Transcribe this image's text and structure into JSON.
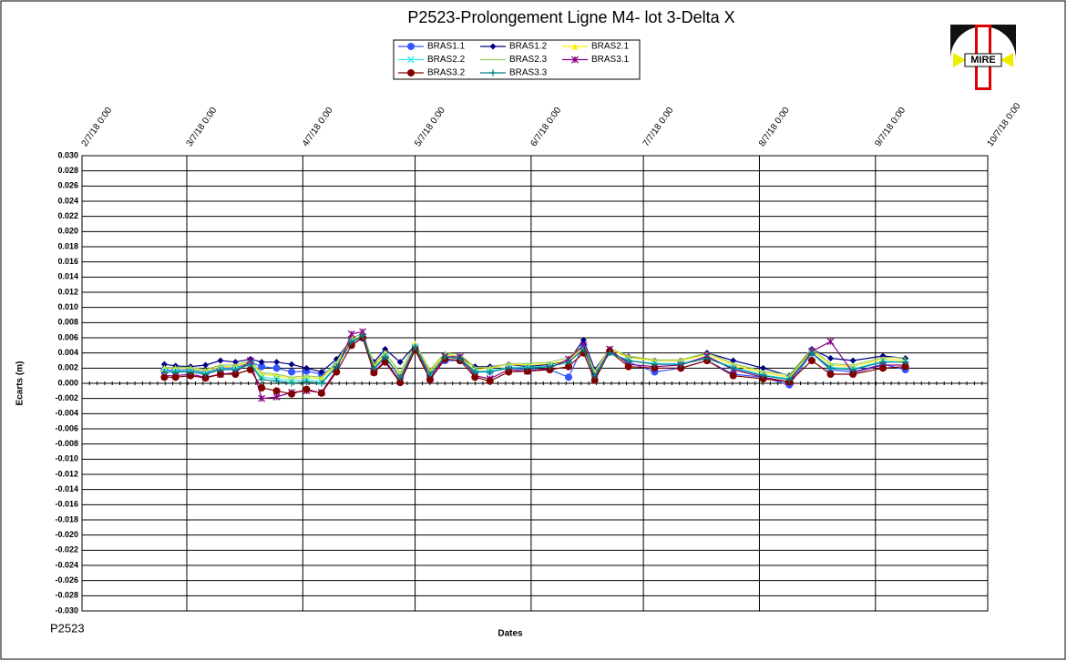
{
  "chart_data": {
    "type": "line",
    "title": "P2523-Prolongement  Ligne  M4- lot 3-Delta X",
    "x_label": "Dates",
    "y_label": "Ecarts (m)",
    "footer": "P2523",
    "logo_text": "MIRE",
    "x": [
      "2018-03-01",
      "2018-03-04",
      "2018-03-08",
      "2018-03-12",
      "2018-03-16",
      "2018-03-20",
      "2018-03-24",
      "2018-03-27",
      "2018-03-31",
      "2018-04-04",
      "2018-04-08",
      "2018-04-12",
      "2018-04-16",
      "2018-04-20",
      "2018-04-23",
      "2018-04-26",
      "2018-04-29",
      "2018-05-03",
      "2018-05-07",
      "2018-05-11",
      "2018-05-15",
      "2018-05-19",
      "2018-05-23",
      "2018-05-27",
      "2018-06-01",
      "2018-06-06",
      "2018-06-12",
      "2018-06-17",
      "2018-06-21",
      "2018-06-24",
      "2018-06-28",
      "2018-07-03",
      "2018-07-10",
      "2018-07-17",
      "2018-07-24",
      "2018-07-31",
      "2018-08-08",
      "2018-08-15",
      "2018-08-21",
      "2018-08-26",
      "2018-09-01",
      "2018-09-09",
      "2018-09-15"
    ],
    "xlim": [
      "2018-02-07",
      "2018-10-07"
    ],
    "xticks": [
      {
        "value": "2018-02-07",
        "label": "2/7/18 0:00"
      },
      {
        "value": "2018-03-07",
        "label": "3/7/18 0:00"
      },
      {
        "value": "2018-04-07",
        "label": "4/7/18 0:00"
      },
      {
        "value": "2018-05-07",
        "label": "5/7/18 0:00"
      },
      {
        "value": "2018-06-07",
        "label": "6/7/18 0:00"
      },
      {
        "value": "2018-07-07",
        "label": "7/7/18 0:00"
      },
      {
        "value": "2018-08-07",
        "label": "8/7/18 0:00"
      },
      {
        "value": "2018-09-07",
        "label": "9/7/18 0:00"
      },
      {
        "value": "2018-10-07",
        "label": "10/7/18 0:00"
      }
    ],
    "ylim": [
      -0.03,
      0.03
    ],
    "yticks": [
      {
        "value": 0.03,
        "label": "0.030"
      },
      {
        "value": 0.028,
        "label": "0.028"
      },
      {
        "value": 0.026,
        "label": "0.026"
      },
      {
        "value": 0.024,
        "label": "0.024"
      },
      {
        "value": 0.022,
        "label": "0.022"
      },
      {
        "value": 0.02,
        "label": "0.020"
      },
      {
        "value": 0.018,
        "label": "0.018"
      },
      {
        "value": 0.016,
        "label": "0.016"
      },
      {
        "value": 0.014,
        "label": "0.014"
      },
      {
        "value": 0.012,
        "label": "0.012"
      },
      {
        "value": 0.01,
        "label": "0.010"
      },
      {
        "value": 0.008,
        "label": "0.008"
      },
      {
        "value": 0.006,
        "label": "0.006"
      },
      {
        "value": 0.004,
        "label": "0.004"
      },
      {
        "value": 0.002,
        "label": "0.002"
      },
      {
        "value": 0,
        "label": "0.000"
      },
      {
        "value": -0.002,
        "label": "-0.002"
      },
      {
        "value": -0.004,
        "label": "-0.004"
      },
      {
        "value": -0.006,
        "label": "-0.006"
      },
      {
        "value": -0.008,
        "label": "-0.008"
      },
      {
        "value": -0.01,
        "label": "-0.010"
      },
      {
        "value": -0.012,
        "label": "-0.012"
      },
      {
        "value": -0.014,
        "label": "-0.014"
      },
      {
        "value": -0.016,
        "label": "-0.016"
      },
      {
        "value": -0.018,
        "label": "-0.018"
      },
      {
        "value": -0.02,
        "label": "-0.020"
      },
      {
        "value": -0.022,
        "label": "-0.022"
      },
      {
        "value": -0.024,
        "label": "-0.024"
      },
      {
        "value": -0.026,
        "label": "-0.026"
      },
      {
        "value": -0.028,
        "label": "-0.028"
      },
      {
        "value": -0.03,
        "label": "-0.030"
      }
    ],
    "grid": true,
    "series": [
      {
        "name": "BRAS1.1",
        "color": "#3355ff",
        "marker": "circle",
        "values": [
          0.0018,
          0.0017,
          0.0018,
          0.0014,
          0.002,
          0.002,
          0.0028,
          0.0022,
          0.002,
          0.0015,
          0.0016,
          0.0012,
          0.0023,
          0.0055,
          0.006,
          0.0018,
          0.0035,
          0.0008,
          0.0045,
          0.001,
          0.003,
          0.003,
          0.0015,
          0.0016,
          0.002,
          0.0018,
          0.0018,
          0.0008,
          0.005,
          0.0012,
          0.0042,
          0.0028,
          0.0015,
          0.002,
          0.003,
          0.0012,
          0.0008,
          -0.0002,
          0.004,
          0.0018,
          0.0015,
          0.0025,
          0.0018
        ]
      },
      {
        "name": "BRAS1.2",
        "color": "#000080",
        "marker": "diamond",
        "values": [
          0.0025,
          0.0023,
          0.0022,
          0.0024,
          0.003,
          0.0028,
          0.0032,
          0.0028,
          0.0028,
          0.0025,
          0.002,
          0.0015,
          0.0032,
          0.0058,
          0.006,
          0.0028,
          0.0045,
          0.0028,
          0.005,
          0.0015,
          0.0038,
          0.0035,
          0.0022,
          0.0022,
          0.0025,
          0.0022,
          0.0025,
          0.003,
          0.0057,
          0.0018,
          0.0045,
          0.0035,
          0.003,
          0.003,
          0.004,
          0.003,
          0.002,
          0.001,
          0.0045,
          0.0033,
          0.003,
          0.0036,
          0.0033
        ]
      },
      {
        "name": "BRAS2.1",
        "color": "#ffee00",
        "marker": "triangle",
        "values": [
          0.002,
          0.002,
          0.002,
          0.0016,
          0.0022,
          0.0022,
          0.0028,
          0.0012,
          0.001,
          0.0006,
          0.0008,
          0.0006,
          0.0025,
          0.0058,
          0.0062,
          0.0022,
          0.004,
          0.0012,
          0.0052,
          0.0015,
          0.0038,
          0.0035,
          0.0018,
          0.002,
          0.0025,
          0.0024,
          0.0026,
          0.003,
          0.0048,
          0.0015,
          0.0045,
          0.0034,
          0.003,
          0.003,
          0.0038,
          0.0024,
          0.0014,
          0.0008,
          0.0043,
          0.0024,
          0.0022,
          0.0032,
          0.003
        ]
      },
      {
        "name": "BRAS2.2",
        "color": "#33e6f0",
        "marker": "x",
        "values": [
          0.0017,
          0.0016,
          0.0017,
          0.0013,
          0.0019,
          0.0019,
          0.0026,
          0.0008,
          0.0006,
          0.0003,
          0.0005,
          0.0002,
          0.0023,
          0.0055,
          0.0062,
          0.0019,
          0.0036,
          0.0008,
          0.0048,
          0.0012,
          0.0035,
          0.0033,
          0.0016,
          0.0016,
          0.0021,
          0.0021,
          0.0023,
          0.0028,
          0.0045,
          0.0011,
          0.004,
          0.003,
          0.0026,
          0.0026,
          0.0034,
          0.0021,
          0.0011,
          0.0006,
          0.004,
          0.0021,
          0.0019,
          0.0029,
          0.0028
        ]
      },
      {
        "name": "BRAS2.3",
        "color": "#99cc66",
        "marker": "none",
        "values": [
          0.0021,
          0.0021,
          0.0021,
          0.0018,
          0.0024,
          0.0024,
          0.003,
          0.0014,
          0.0012,
          0.0008,
          0.001,
          0.0008,
          0.0028,
          0.006,
          0.0065,
          0.0026,
          0.004,
          0.0014,
          0.0052,
          0.0018,
          0.004,
          0.0038,
          0.0021,
          0.0021,
          0.0026,
          0.0026,
          0.0028,
          0.0034,
          0.005,
          0.0016,
          0.0046,
          0.0036,
          0.0031,
          0.0031,
          0.004,
          0.0026,
          0.0016,
          0.0011,
          0.0046,
          0.0026,
          0.0024,
          0.0034,
          0.0034
        ]
      },
      {
        "name": "BRAS3.1",
        "color": "#880088",
        "marker": "star",
        "values": [
          0.001,
          0.001,
          0.0012,
          0.0008,
          0.0012,
          0.0014,
          0.003,
          -0.002,
          -0.0018,
          -0.0012,
          -0.001,
          -0.0012,
          0.0018,
          0.0065,
          0.0068,
          0.0015,
          0.003,
          0.0003,
          0.0045,
          0.0006,
          0.0035,
          0.0035,
          0.001,
          0.0006,
          0.0018,
          0.0016,
          0.002,
          0.0032,
          0.005,
          0.0006,
          0.0045,
          0.0025,
          0.0022,
          0.0024,
          0.0036,
          0.0018,
          0.0008,
          0.0002,
          0.0042,
          0.0055,
          0.0014,
          0.0024,
          0.0024
        ]
      },
      {
        "name": "BRAS3.2",
        "color": "#800000",
        "marker": "circle",
        "values": [
          0.0008,
          0.0008,
          0.001,
          0.0007,
          0.0012,
          0.0012,
          0.0018,
          -0.0006,
          -0.001,
          -0.0014,
          -0.0008,
          -0.0013,
          0.0015,
          0.005,
          0.006,
          0.0014,
          0.0028,
          0.0001,
          0.0044,
          0.0005,
          0.0032,
          0.003,
          0.0008,
          0.0003,
          0.0015,
          0.0016,
          0.0018,
          0.0022,
          0.004,
          0.0004,
          0.0042,
          0.0022,
          0.002,
          0.002,
          0.003,
          0.001,
          0.0006,
          0.0002,
          0.003,
          0.0012,
          0.0012,
          0.002,
          0.0022
        ]
      },
      {
        "name": "BRAS3.3",
        "color": "#008080",
        "marker": "plus",
        "values": [
          0.0015,
          0.0015,
          0.0015,
          0.0012,
          0.0018,
          0.0018,
          0.0025,
          0.0005,
          0.0003,
          0.0,
          0.0002,
          0.0,
          0.0022,
          0.0055,
          0.0063,
          0.002,
          0.0035,
          0.0008,
          0.0048,
          0.0012,
          0.0035,
          0.0032,
          0.0015,
          0.0015,
          0.002,
          0.002,
          0.0022,
          0.0028,
          0.0045,
          0.001,
          0.004,
          0.003,
          0.0025,
          0.0025,
          0.0033,
          0.002,
          0.001,
          0.0005,
          0.004,
          0.002,
          0.0018,
          0.0028,
          0.0028
        ]
      }
    ]
  }
}
